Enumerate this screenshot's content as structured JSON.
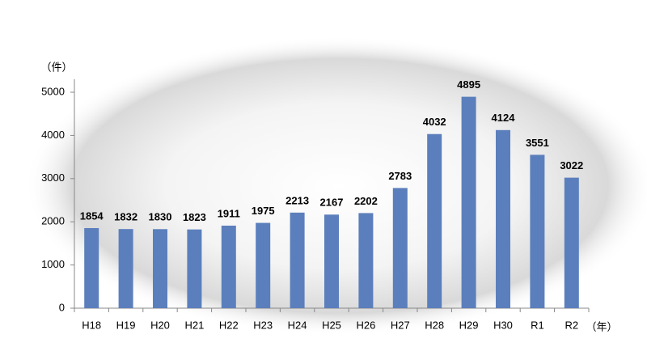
{
  "chart_data": {
    "type": "bar",
    "y_label": "（件）",
    "x_label": "（年）",
    "categories": [
      "H18",
      "H19",
      "H20",
      "H21",
      "H22",
      "H23",
      "H24",
      "H25",
      "H26",
      "H27",
      "H28",
      "H29",
      "H30",
      "R1",
      "R2"
    ],
    "values": [
      1854,
      1832,
      1830,
      1823,
      1911,
      1975,
      2213,
      2167,
      2202,
      2783,
      4032,
      4895,
      4124,
      3551,
      3022
    ],
    "color": "#5b7fbc",
    "ylim": [
      0,
      5300
    ],
    "yticks": [
      0,
      1000,
      2000,
      3000,
      4000,
      5000
    ],
    "grid": false
  }
}
